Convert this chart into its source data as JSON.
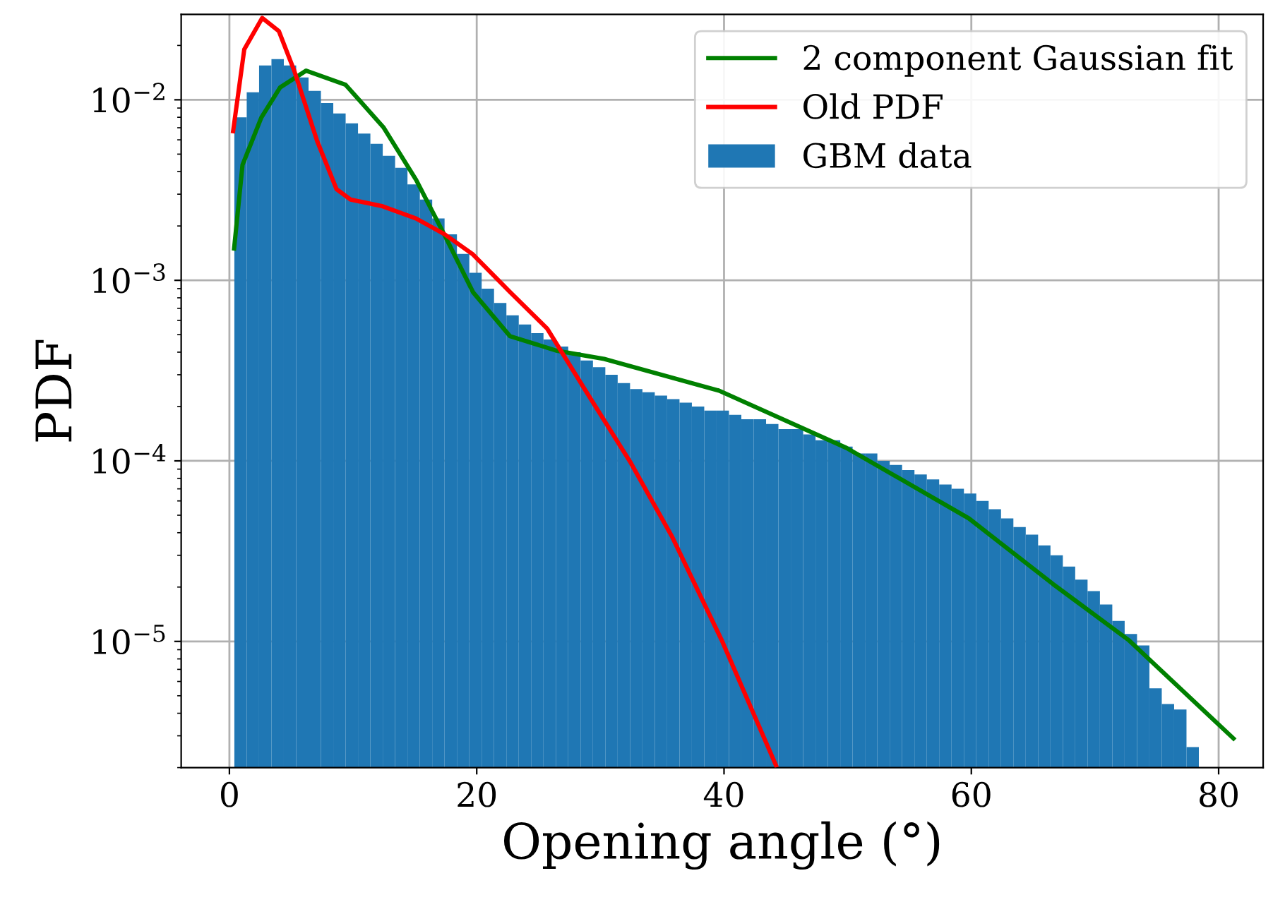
{
  "chart_data": {
    "type": "histogram",
    "xlabel": "Opening angle (°)",
    "ylabel": "PDF",
    "log": "y",
    "grid": true,
    "legend": "top right",
    "xlim": [
      -3.9,
      83.6
    ],
    "xticks": [
      0,
      20,
      40,
      60,
      80
    ],
    "ylim": [
      2e-06,
      0.0297
    ],
    "yticks": [
      {
        "value": 0.01,
        "label": "10$^{−2}$"
      },
      {
        "value": 0.001,
        "label": "10$^{−3}$"
      },
      {
        "value": 0.0001,
        "label": "10$^{−4}$"
      },
      {
        "value": 1e-05,
        "label": "10$^{−5}$"
      }
    ],
    "bins": [
      0.4,
      1.4,
      2.4,
      3.4,
      4.4,
      5.4,
      6.4,
      7.4,
      8.4,
      9.4,
      10.4,
      11.4,
      12.4,
      13.4,
      14.4,
      15.4,
      16.4,
      17.4,
      18.4,
      19.4,
      20.4,
      21.4,
      22.4,
      23.4,
      24.4,
      25.4,
      26.4,
      27.4,
      28.4,
      29.4,
      30.4,
      31.4,
      32.4,
      33.4,
      34.4,
      35.4,
      36.4,
      37.4,
      38.4,
      39.4,
      40.4,
      41.4,
      42.4,
      43.4,
      44.4,
      45.4,
      46.4,
      47.4,
      48.4,
      49.4,
      50.4,
      51.4,
      52.4,
      53.4,
      54.4,
      55.4,
      56.4,
      57.4,
      58.4,
      59.4,
      60.4,
      61.4,
      62.4,
      63.4,
      64.4,
      65.4,
      66.4,
      67.4,
      68.4,
      69.4,
      70.4,
      71.4,
      72.4,
      73.4,
      74.4,
      75.4,
      76.4,
      77.4,
      78.4
    ],
    "series": [
      {
        "name": "2 component Gaussian fit",
        "type": "line",
        "color": "#008000",
        "x": [
          0.38,
          1.06,
          2.58,
          4.1,
          6.2,
          9.4,
          12.45,
          15.1,
          17.4,
          19.7,
          22.7,
          26.5,
          30.3,
          39.6,
          49.9,
          59.8,
          66.6,
          72.7,
          81.2
        ],
        "values": [
          0.0015,
          0.00436,
          0.00796,
          0.0117,
          0.0145,
          0.0121,
          0.00705,
          0.0036,
          0.00178,
          0.00086,
          0.00049,
          0.000407,
          0.000367,
          0.000245,
          0.000118,
          4.8e-05,
          2.08e-05,
          1.02e-05,
          2.9e-06
        ]
      },
      {
        "name": "Old PDF",
        "type": "line",
        "color": "#ff0000",
        "x": [
          0.3,
          1.2,
          2.65,
          4.0,
          5.24,
          7.1,
          8.66,
          9.8,
          12.4,
          15.1,
          17.4,
          19.7,
          22.7,
          25.7,
          28.8,
          32.4,
          35.8,
          39.8,
          44.2
        ],
        "values": [
          0.0067,
          0.019,
          0.0284,
          0.024,
          0.0145,
          0.0059,
          0.0032,
          0.0028,
          0.00257,
          0.0022,
          0.0018,
          0.00139,
          0.00086,
          0.00054,
          0.000245,
          9.9e-05,
          3.8e-05,
          1.02e-05,
          2.06e-06
        ]
      },
      {
        "name": "GBM data",
        "color": "#1f77b4",
        "values": [
          0.008,
          0.011,
          0.0155,
          0.0168,
          0.0155,
          0.0133,
          0.0112,
          0.0096,
          0.0084,
          0.0074,
          0.0065,
          0.0057,
          0.0049,
          0.0042,
          0.0034,
          0.0028,
          0.0022,
          0.0018,
          0.0014,
          0.0011,
          0.0009,
          0.00075,
          0.00064,
          0.00057,
          0.00051,
          0.00047,
          0.00043,
          0.0004,
          0.00036,
          0.00033,
          0.0003,
          0.00027,
          0.00025,
          0.00024,
          0.00023,
          0.00022,
          0.00021,
          0.0002,
          0.00019,
          0.00019,
          0.00018,
          0.00017,
          0.00017,
          0.00016,
          0.00015,
          0.00015,
          0.00014,
          0.00013,
          0.00013,
          0.00012,
          0.00011,
          0.00011,
          0.0001,
          9.5e-05,
          8.9e-05,
          8.4e-05,
          7.9e-05,
          7.4e-05,
          7e-05,
          6.6e-05,
          6e-05,
          5.4e-05,
          4.8e-05,
          4.3e-05,
          3.9e-05,
          3.4e-05,
          3e-05,
          2.6e-05,
          2.2e-05,
          1.9e-05,
          1.6e-05,
          1.3e-05,
          1.1e-05,
          9.5e-06,
          5.5e-06,
          4.5e-06,
          4.2e-06,
          2.6e-06
        ]
      }
    ]
  }
}
